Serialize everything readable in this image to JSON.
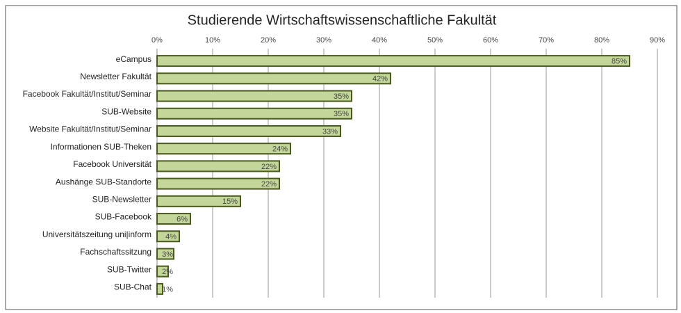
{
  "chart_data": {
    "type": "bar",
    "orientation": "horizontal",
    "title": "Studierende Wirtschaftswissenschaftliche Fakultät",
    "categories": [
      "eCampus",
      "Newsletter Fakultät",
      "Facebook Fakultät/Institut/Seminar",
      "SUB-Website",
      "Website Fakultät/Institut/Seminar",
      "Informationen SUB-Theken",
      "Facebook Universität",
      "Aushänge SUB-Standorte",
      "SUB-Newsletter",
      "SUB-Facebook",
      "Universitätszeitung uni|inform",
      "Fachschaftssitzung",
      "SUB-Twitter",
      "SUB-Chat"
    ],
    "values": [
      85,
      42,
      35,
      35,
      33,
      24,
      22,
      22,
      15,
      6,
      4,
      3,
      2,
      1
    ],
    "value_labels": [
      "85%",
      "42%",
      "35%",
      "35%",
      "33%",
      "24%",
      "22%",
      "22%",
      "15%",
      "6%",
      "4%",
      "3%",
      "2%",
      "1%"
    ],
    "color": "#c4d79b",
    "xlim": [
      0,
      90
    ],
    "xticks": [
      {
        "value": 0,
        "label": "0%"
      },
      {
        "value": 10,
        "label": "10%"
      },
      {
        "value": 20,
        "label": "20%"
      },
      {
        "value": 30,
        "label": "30%"
      },
      {
        "value": 40,
        "label": "40%"
      },
      {
        "value": 50,
        "label": "50%"
      },
      {
        "value": 60,
        "label": "60%"
      },
      {
        "value": 70,
        "label": "70%"
      },
      {
        "value": 80,
        "label": "80%"
      },
      {
        "value": 90,
        "label": "90%"
      }
    ],
    "grid": true
  }
}
